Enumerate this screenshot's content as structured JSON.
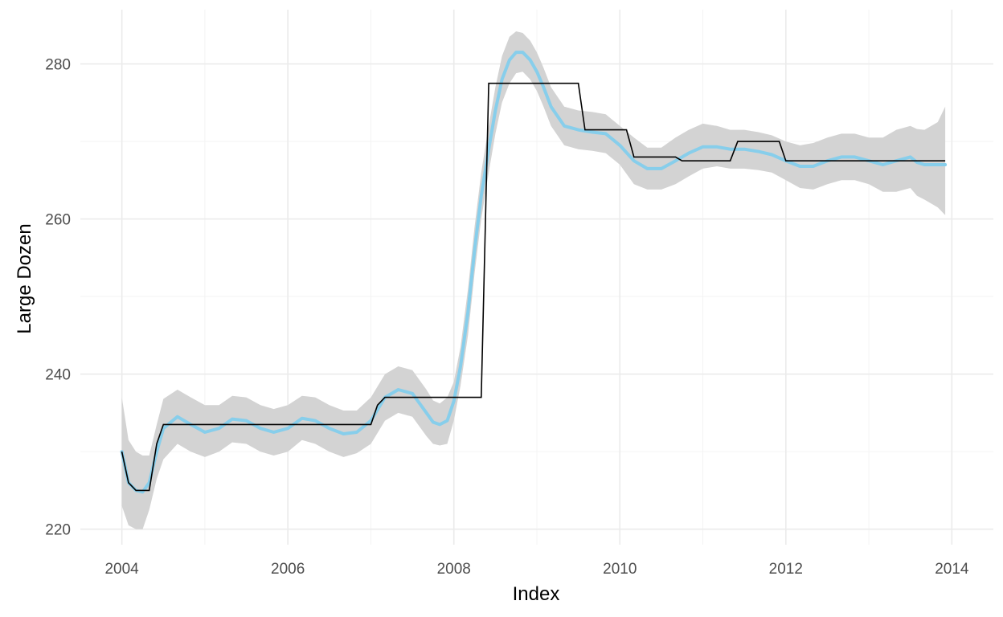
{
  "chart_data": {
    "type": "line",
    "xlabel": "Index",
    "ylabel": "Large Dozen",
    "xlim": [
      2003.5,
      2014.5
    ],
    "ylim": [
      218,
      287
    ],
    "x_ticks": [
      2004,
      2006,
      2008,
      2010,
      2012,
      2014
    ],
    "x_tick_labels": [
      "2004",
      "2006",
      "2008",
      "2010",
      "2012",
      "2014"
    ],
    "y_ticks": [
      220,
      240,
      260,
      280
    ],
    "y_tick_labels": [
      "220",
      "240",
      "260",
      "280"
    ],
    "grid": true,
    "legend": "none",
    "colors": {
      "price": "#000000",
      "smooth": "#87ceeb",
      "band": "#d3d3d3"
    },
    "series": [
      {
        "type": "step",
        "x": [
          2004.0,
          2004.08,
          2004.17,
          2004.33,
          2004.42,
          2004.5,
          2007.0,
          2007.08,
          2007.17,
          2008.33,
          2008.42,
          2009.5,
          2009.58,
          2010.08,
          2010.17,
          2010.67,
          2010.75,
          2011.33,
          2011.42,
          2011.92,
          2012.0,
          2013.92
        ],
        "y": [
          230.0,
          226.0,
          225.0,
          225.0,
          231.0,
          233.5,
          233.5,
          236.0,
          237.0,
          237.0,
          277.5,
          277.5,
          271.5,
          271.5,
          268.0,
          268.0,
          267.5,
          267.5,
          270.0,
          270.0,
          267.5,
          267.5
        ]
      },
      {
        "type": "smooth",
        "x": [
          2004.0,
          2004.08,
          2004.17,
          2004.25,
          2004.33,
          2004.42,
          2004.5,
          2004.67,
          2004.83,
          2005.0,
          2005.17,
          2005.33,
          2005.5,
          2005.67,
          2005.83,
          2006.0,
          2006.17,
          2006.33,
          2006.5,
          2006.67,
          2006.83,
          2007.0,
          2007.17,
          2007.33,
          2007.5,
          2007.67,
          2007.75,
          2007.83,
          2007.92,
          2008.0,
          2008.08,
          2008.17,
          2008.25,
          2008.33,
          2008.42,
          2008.5,
          2008.58,
          2008.67,
          2008.75,
          2008.83,
          2008.92,
          2009.0,
          2009.08,
          2009.17,
          2009.33,
          2009.5,
          2009.67,
          2009.83,
          2010.0,
          2010.17,
          2010.33,
          2010.5,
          2010.67,
          2010.83,
          2011.0,
          2011.17,
          2011.33,
          2011.5,
          2011.67,
          2011.83,
          2012.0,
          2012.17,
          2012.33,
          2012.5,
          2012.67,
          2012.83,
          2013.0,
          2013.17,
          2013.33,
          2013.5,
          2013.58,
          2013.67,
          2013.83,
          2013.92
        ],
        "y": [
          230.0,
          226.0,
          225.0,
          224.8,
          226.0,
          230.0,
          233.0,
          234.5,
          233.5,
          232.5,
          233.0,
          234.2,
          234.0,
          233.0,
          232.5,
          233.0,
          234.3,
          234.0,
          233.0,
          232.3,
          232.5,
          234.0,
          237.0,
          238.0,
          237.5,
          235.0,
          233.8,
          233.5,
          234.0,
          236.5,
          241.0,
          248.0,
          256.0,
          263.0,
          269.0,
          274.0,
          278.0,
          280.5,
          281.5,
          281.5,
          280.5,
          279.0,
          277.0,
          274.5,
          272.0,
          271.5,
          271.2,
          271.0,
          269.5,
          267.5,
          266.5,
          266.5,
          267.5,
          268.5,
          269.3,
          269.3,
          269.0,
          269.0,
          268.7,
          268.3,
          267.5,
          266.8,
          266.8,
          267.5,
          268.0,
          268.0,
          267.5,
          267.0,
          267.5,
          268.0,
          267.3,
          267.0,
          267.0,
          267.0
        ]
      },
      {
        "type": "band",
        "x": [
          2004.0,
          2004.08,
          2004.17,
          2004.25,
          2004.33,
          2004.42,
          2004.5,
          2004.67,
          2004.83,
          2005.0,
          2005.17,
          2005.33,
          2005.5,
          2005.67,
          2005.83,
          2006.0,
          2006.17,
          2006.33,
          2006.5,
          2006.67,
          2006.83,
          2007.0,
          2007.17,
          2007.33,
          2007.5,
          2007.67,
          2007.75,
          2007.83,
          2007.92,
          2008.0,
          2008.08,
          2008.17,
          2008.25,
          2008.33,
          2008.42,
          2008.5,
          2008.58,
          2008.67,
          2008.75,
          2008.83,
          2008.92,
          2009.0,
          2009.08,
          2009.17,
          2009.33,
          2009.5,
          2009.67,
          2009.83,
          2010.0,
          2010.17,
          2010.33,
          2010.5,
          2010.67,
          2010.83,
          2011.0,
          2011.17,
          2011.33,
          2011.5,
          2011.67,
          2011.83,
          2012.0,
          2012.17,
          2012.33,
          2012.5,
          2012.67,
          2012.83,
          2013.0,
          2013.17,
          2013.33,
          2013.5,
          2013.58,
          2013.67,
          2013.83,
          2013.92
        ],
        "y_lower": [
          223.0,
          220.5,
          220.0,
          220.0,
          222.5,
          226.5,
          229.0,
          231.0,
          230.0,
          229.3,
          230.0,
          231.2,
          231.0,
          230.0,
          229.5,
          230.0,
          231.5,
          231.0,
          230.0,
          229.3,
          229.8,
          231.0,
          234.0,
          235.0,
          234.5,
          232.0,
          231.0,
          230.8,
          231.0,
          234.0,
          238.5,
          245.0,
          253.0,
          260.0,
          266.0,
          271.0,
          275.0,
          277.5,
          278.8,
          279.0,
          278.0,
          276.5,
          274.5,
          272.0,
          269.5,
          269.0,
          268.8,
          268.5,
          267.0,
          264.5,
          263.8,
          263.8,
          264.5,
          265.5,
          266.5,
          266.8,
          266.5,
          266.5,
          266.3,
          266.0,
          265.0,
          264.0,
          263.8,
          264.5,
          265.0,
          265.0,
          264.5,
          263.5,
          263.5,
          264.0,
          263.0,
          262.5,
          261.5,
          260.5
        ],
        "y_upper": [
          237.0,
          231.5,
          230.0,
          229.5,
          229.5,
          233.5,
          236.8,
          238.0,
          237.0,
          236.0,
          236.0,
          237.2,
          237.0,
          236.0,
          235.5,
          236.0,
          237.2,
          237.0,
          236.0,
          235.3,
          235.3,
          237.0,
          240.0,
          241.0,
          240.5,
          238.0,
          236.6,
          236.2,
          237.0,
          239.0,
          243.5,
          251.0,
          259.0,
          266.0,
          272.0,
          277.0,
          281.0,
          283.5,
          284.2,
          284.0,
          283.0,
          281.5,
          279.5,
          277.0,
          274.5,
          274.0,
          273.8,
          273.5,
          272.0,
          270.5,
          269.2,
          269.2,
          270.5,
          271.5,
          272.3,
          272.0,
          271.5,
          271.5,
          271.2,
          270.8,
          270.0,
          269.5,
          269.8,
          270.5,
          271.0,
          271.0,
          270.5,
          270.5,
          271.5,
          272.0,
          271.6,
          271.5,
          272.5,
          274.5
        ]
      }
    ]
  }
}
